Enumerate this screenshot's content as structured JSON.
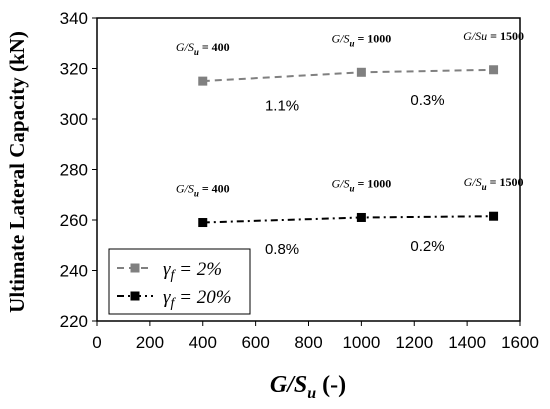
{
  "chart_data": {
    "type": "line",
    "xlabel_main": "G/S",
    "xlabel_sub": "u",
    "xlabel_suffix": " (-)",
    "ylabel": "Ultimate Lateral Capacity (kN)",
    "xlim": [
      0,
      1600
    ],
    "ylim": [
      220,
      340
    ],
    "xticks": [
      "0",
      "200",
      "400",
      "600",
      "800",
      "1000",
      "1200",
      "1400",
      "1600"
    ],
    "yticks": [
      "220",
      "240",
      "260",
      "280",
      "300",
      "320",
      "340"
    ],
    "grid": "none",
    "legend_position": "lower-left",
    "series": [
      {
        "name": "γf = 2%",
        "color": "#808080",
        "line_style": "dashed",
        "x": [
          400,
          1000,
          1500
        ],
        "y": [
          315,
          318.5,
          319.5
        ],
        "point_labels": [
          {
            "main": "G/S",
            "sub": "u",
            "suffix": " = 400"
          },
          {
            "main": "G/S",
            "sub": "u",
            "suffix": " = 1000"
          },
          {
            "main": "G/Su",
            "sub": "",
            "suffix": " = 1500"
          }
        ],
        "segment_changes": [
          "1.1%",
          "0.3%"
        ]
      },
      {
        "name": "γf = 20%",
        "color": "#000000",
        "line_style": "dash-dot",
        "x": [
          400,
          1000,
          1500
        ],
        "y": [
          259,
          261,
          261.5
        ],
        "point_labels": [
          {
            "main": "G/S",
            "sub": "u",
            "suffix": " = 400"
          },
          {
            "main": "G/S",
            "sub": "u",
            "suffix": " = 1000"
          },
          {
            "main": "G/S",
            "sub": "u",
            "suffix": " = 1500"
          }
        ],
        "segment_changes": [
          "0.8%",
          "0.2%"
        ]
      }
    ],
    "legend": [
      {
        "symbol": "γ",
        "sub": "f",
        "text": " = 2%"
      },
      {
        "symbol": "γ",
        "sub": "f",
        "text": " = 20%"
      }
    ]
  }
}
